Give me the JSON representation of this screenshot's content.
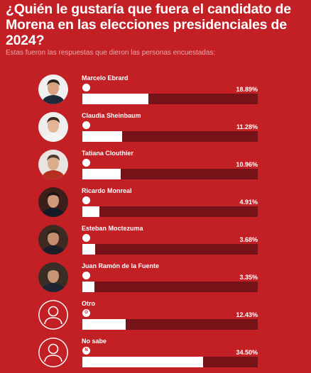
{
  "chart_data": {
    "type": "bar",
    "title": "¿Quién le gustaría que fuera el candidato de Morena en las elecciones presidenciales de 2024?",
    "subtitle": "Estas fueron las respuestas que dieron las personas encuestadas:",
    "categories": [
      "Marcelo Ebrard",
      "Claudia Sheinbaum",
      "Tatiana Clouthier",
      "Ricardo Monreal",
      "Esteban Moctezuma",
      "Juan Ramón de la Fuente",
      "Otro",
      "No sabe"
    ],
    "values": [
      18.89,
      11.28,
      10.96,
      4.91,
      3.68,
      3.35,
      12.43,
      34.5
    ],
    "value_labels": [
      "18.89%",
      "11.28%",
      "10.96%",
      "4.91%",
      "3.68%",
      "3.35%",
      "12.43%",
      "34.50%"
    ],
    "badges": [
      "",
      "",
      "",
      "",
      "",
      "",
      "O",
      "N"
    ],
    "avatar_icons": [
      "person-photo-icon",
      "person-photo-icon",
      "person-photo-icon",
      "person-photo-icon",
      "person-photo-icon",
      "person-photo-icon",
      "generic-person-icon",
      "generic-person-icon"
    ],
    "xlim": [
      0,
      50
    ],
    "colors": {
      "background": "#c32026",
      "bar_fill": "#ffffff",
      "bar_track": "#761318",
      "badge_text": "#c32026"
    }
  }
}
